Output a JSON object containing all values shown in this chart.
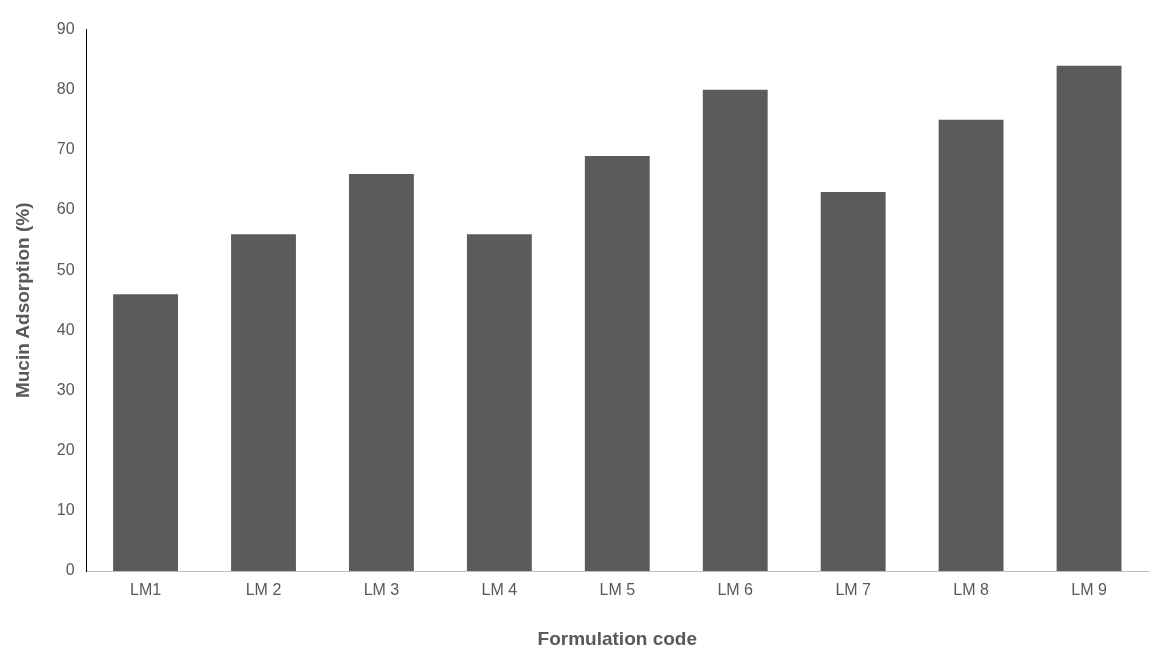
{
  "chart_data": {
    "type": "bar",
    "xlabel": "Formulation code",
    "ylabel": "Mucin Adsorption (%)",
    "categories": [
      "LM1",
      "LM 2",
      "LM 3",
      "LM 4",
      "LM 5",
      "LM 6",
      "LM 7",
      "LM 8",
      "LM 9"
    ],
    "values": [
      46,
      56,
      66,
      56,
      69,
      80,
      63,
      75,
      84
    ],
    "color": "#5b5b5b",
    "ylim": [
      0,
      90
    ],
    "yticks": [
      0,
      10,
      20,
      30,
      40,
      50,
      60,
      70,
      80,
      90
    ],
    "grid": false,
    "legend": false
  }
}
